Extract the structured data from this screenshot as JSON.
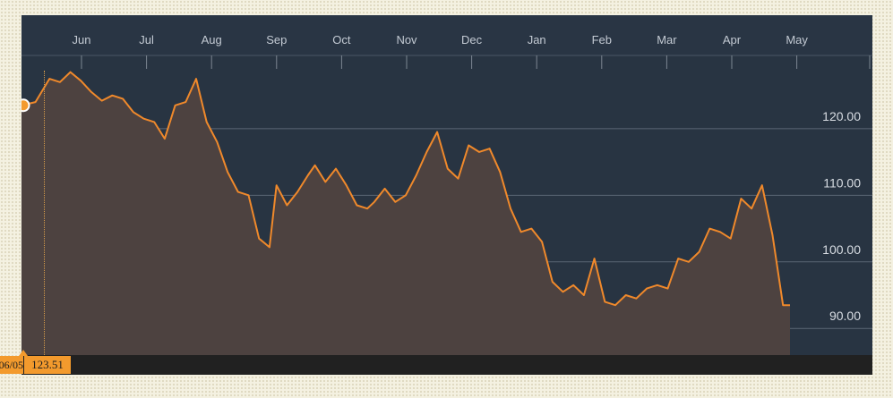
{
  "chart_data": {
    "type": "line",
    "title": "",
    "xlabel": "",
    "ylabel": "",
    "x_ticks": [
      "Jun",
      "Jul",
      "Aug",
      "Sep",
      "Oct",
      "Nov",
      "Dec",
      "Jan",
      "Feb",
      "Mar",
      "Apr",
      "May"
    ],
    "y_ticks": [
      "90.00",
      "100.00",
      "110.00",
      "120.00"
    ],
    "ylim": [
      86.0,
      131.0
    ],
    "grid": "horizontal",
    "series": [
      {
        "color": "#f0892b",
        "x": [
          0,
          0.2,
          0.4,
          0.55,
          0.7,
          0.85,
          1.0,
          1.15,
          1.3,
          1.45,
          1.6,
          1.75,
          1.9,
          2.05,
          2.2,
          2.35,
          2.5,
          2.65,
          2.8,
          2.95,
          3.1,
          3.25,
          3.4,
          3.55,
          3.65,
          3.8,
          3.95,
          4.1,
          4.2,
          4.35,
          4.5,
          4.65,
          4.8,
          4.95,
          5.05,
          5.2,
          5.35,
          5.5,
          5.65,
          5.8,
          5.95,
          6.1,
          6.25,
          6.4,
          6.55,
          6.7,
          6.85,
          7.0,
          7.15,
          7.3,
          7.45,
          7.6,
          7.75,
          7.9,
          8.05,
          8.2,
          8.35,
          8.5,
          8.65,
          8.8,
          8.95,
          9.1,
          9.25,
          9.4,
          9.55,
          9.7,
          9.85,
          10.0,
          10.15,
          10.3,
          10.45,
          10.6,
          10.75,
          10.9,
          11.0
        ],
        "values": [
          123.51,
          124.0,
          127.5,
          127.0,
          128.5,
          127.2,
          125.5,
          124.2,
          125.0,
          124.5,
          122.5,
          121.5,
          121.0,
          118.5,
          123.5,
          124.0,
          127.5,
          121.0,
          118.0,
          113.5,
          110.5,
          110.0,
          103.5,
          102.2,
          111.5,
          108.5,
          110.5,
          113.0,
          114.5,
          112.0,
          114.0,
          111.5,
          108.5,
          108.0,
          109.0,
          111.0,
          109.0,
          110.0,
          113.0,
          116.5,
          119.5,
          114.0,
          112.5,
          117.5,
          116.5,
          117.0,
          113.5,
          108.0,
          104.5,
          105.0,
          103.0,
          97.0,
          95.5,
          96.5,
          95.0,
          100.5,
          94.0,
          93.5,
          95.0,
          94.5,
          96.0,
          96.5,
          96.0,
          100.5,
          100.0,
          101.5,
          105.0,
          104.5,
          103.5,
          109.5,
          108.0,
          111.5,
          104.0,
          93.5,
          93.5
        ]
      }
    ]
  },
  "crosshair": {
    "date_label": "06/05",
    "value_label": "123.51"
  }
}
